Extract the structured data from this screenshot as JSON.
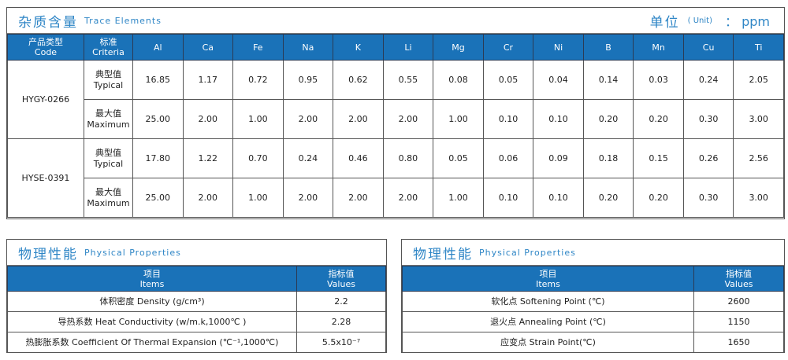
{
  "trace": {
    "title_cn": "杂质含量",
    "title_en": "Trace Elements",
    "unit_cn": "单位",
    "unit_en": "( Unit)",
    "unit_value": "： ppm",
    "header_code_cn": "产品类型",
    "header_code_en": "Code",
    "header_criteria_cn": "标准",
    "header_criteria_en": "Criteria",
    "elements": [
      "Al",
      "Ca",
      "Fe",
      "Na",
      "K",
      "Li",
      "Mg",
      "Cr",
      "Ni",
      "B",
      "Mn",
      "Cu",
      "Ti"
    ],
    "products": [
      {
        "code": "HYGY-0266",
        "rows": [
          {
            "cn": "典型值",
            "en": "Typical",
            "values": [
              "16.85",
              "1.17",
              "0.72",
              "0.95",
              "0.62",
              "0.55",
              "0.08",
              "0.05",
              "0.04",
              "0.14",
              "0.03",
              "0.24",
              "2.05"
            ]
          },
          {
            "cn": "最大值",
            "en": "Maximum",
            "values": [
              "25.00",
              "2.00",
              "1.00",
              "2.00",
              "2.00",
              "2.00",
              "1.00",
              "0.10",
              "0.10",
              "0.20",
              "0.20",
              "0.30",
              "3.00"
            ]
          }
        ]
      },
      {
        "code": "HYSE-0391",
        "rows": [
          {
            "cn": "典型值",
            "en": "Typical",
            "values": [
              "17.80",
              "1.22",
              "0.70",
              "0.24",
              "0.46",
              "0.80",
              "0.05",
              "0.06",
              "0.09",
              "0.18",
              "0.15",
              "0.26",
              "2.56"
            ]
          },
          {
            "cn": "最大值",
            "en": "Maximum",
            "values": [
              "25.00",
              "2.00",
              "1.00",
              "2.00",
              "2.00",
              "2.00",
              "1.00",
              "0.10",
              "0.10",
              "0.20",
              "0.20",
              "0.30",
              "3.00"
            ]
          }
        ]
      }
    ]
  },
  "physical_left": {
    "title_cn": "物理性能",
    "title_en": "Physical  Properties",
    "header_items_cn": "项目",
    "header_items_en": "Items",
    "header_values_cn": "指标值",
    "header_values_en": "Values",
    "rows": [
      {
        "item": "体积密度 Density (g/cm³)",
        "value": "2.2"
      },
      {
        "item": "导热系数 Heat Conductivity (w/m.k,1000℃ )",
        "value": "2.28"
      },
      {
        "item": "热膨胀系数 Coefficient Of Thermal Expansion (℃⁻¹,1000℃)",
        "value": "5.5x10⁻⁷"
      }
    ]
  },
  "physical_right": {
    "title_cn": "物理性能",
    "title_en": "Physical  Properties",
    "header_items_cn": "项目",
    "header_items_en": "Items",
    "header_values_cn": "指标值",
    "header_values_en": "Values",
    "rows": [
      {
        "item": "软化点 Softening Point (℃)",
        "value": "2600"
      },
      {
        "item": "退火点 Annealing Point (℃)",
        "value": "1150"
      },
      {
        "item": "应变点 Strain Point(℃)",
        "value": "1650"
      }
    ]
  },
  "colors": {
    "header_bg": "#1a72b8",
    "title_text": "#2f86c6"
  }
}
